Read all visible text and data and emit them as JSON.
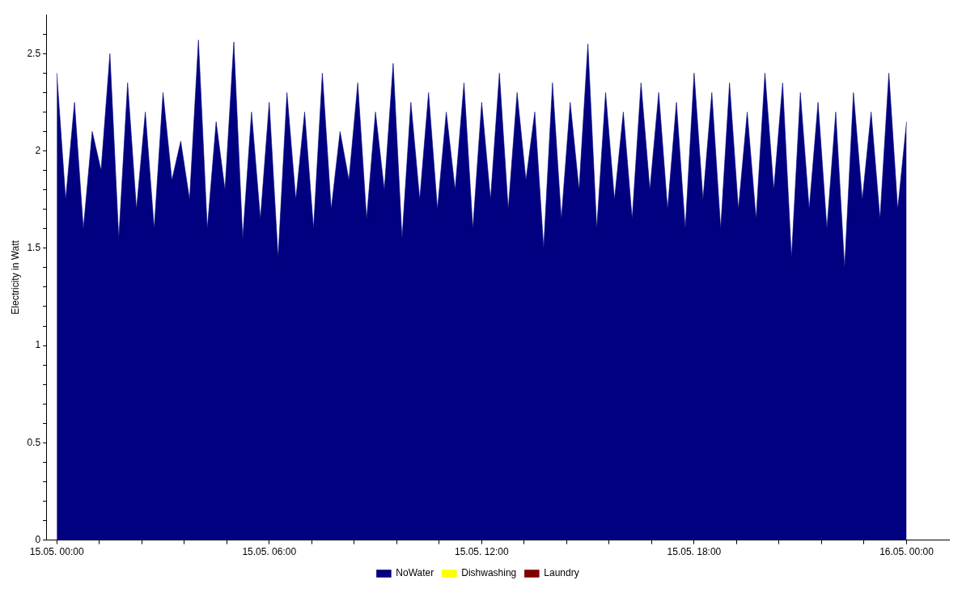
{
  "chart_data": {
    "type": "area",
    "ylabel": "Electricity in Watt",
    "legend": "bottom",
    "grid": false,
    "marker": "none",
    "xlim": [
      "--05-14T23:42",
      "--05-16T01:12"
    ],
    "ylim": [
      0,
      2.7
    ],
    "xticks": [
      {
        "value": "--05-15T00:00",
        "label": "15.05. 00:00"
      },
      {
        "value": "--05-15T01:12",
        "label": null
      },
      {
        "value": "--05-15T02:24",
        "label": null
      },
      {
        "value": "--05-15T03:36",
        "label": null
      },
      {
        "value": "--05-15T04:48",
        "label": null
      },
      {
        "value": "--05-15T06:00",
        "label": "15.05. 06:00"
      },
      {
        "value": "--05-15T07:12",
        "label": null
      },
      {
        "value": "--05-15T08:24",
        "label": null
      },
      {
        "value": "--05-15T09:36",
        "label": null
      },
      {
        "value": "--05-15T10:48",
        "label": null
      },
      {
        "value": "--05-15T12:00",
        "label": "15.05. 12:00"
      },
      {
        "value": "--05-15T13:12",
        "label": null
      },
      {
        "value": "--05-15T14:24",
        "label": null
      },
      {
        "value": "--05-15T15:36",
        "label": null
      },
      {
        "value": "--05-15T16:48",
        "label": null
      },
      {
        "value": "--05-15T18:00",
        "label": "15.05. 18:00"
      },
      {
        "value": "--05-15T19:12",
        "label": null
      },
      {
        "value": "--05-15T20:24",
        "label": null
      },
      {
        "value": "--05-15T21:36",
        "label": null
      },
      {
        "value": "--05-15T22:48",
        "label": null
      },
      {
        "value": "--05-16T00:00",
        "label": "16.05. 00:00"
      }
    ],
    "yticks": [
      0,
      {
        "value": 0.1,
        "label": null
      },
      {
        "value": 0.2,
        "label": null
      },
      {
        "value": 0.3,
        "label": null
      },
      {
        "value": 0.4,
        "label": null
      },
      0.5,
      {
        "value": 0.6,
        "label": null
      },
      {
        "value": 0.7,
        "label": null
      },
      {
        "value": 0.8,
        "label": null
      },
      {
        "value": 0.9,
        "label": null
      },
      1,
      {
        "value": 1.1,
        "label": null
      },
      {
        "value": 1.2,
        "label": null
      },
      {
        "value": 1.3,
        "label": null
      },
      {
        "value": 1.4,
        "label": null
      },
      1.5,
      {
        "value": 1.6,
        "label": null
      },
      {
        "value": 1.7,
        "label": null
      },
      {
        "value": 1.8,
        "label": null
      },
      {
        "value": 1.9,
        "label": null
      },
      2,
      {
        "value": 2.1,
        "label": null
      },
      {
        "value": 2.2,
        "label": null
      },
      {
        "value": 2.3,
        "label": null
      },
      {
        "value": 2.4,
        "label": null
      },
      2.5,
      {
        "value": 2.6,
        "label": null
      }
    ],
    "x": [
      "--05-15T00:00",
      "--05-15T00:15",
      "--05-15T00:30",
      "--05-15T00:45",
      "--05-15T01:00",
      "--05-15T01:15",
      "--05-15T01:30",
      "--05-15T01:45",
      "--05-15T02:00",
      "--05-15T02:15",
      "--05-15T02:30",
      "--05-15T02:45",
      "--05-15T03:00",
      "--05-15T03:15",
      "--05-15T03:30",
      "--05-15T03:45",
      "--05-15T04:00",
      "--05-15T04:15",
      "--05-15T04:30",
      "--05-15T04:45",
      "--05-15T05:00",
      "--05-15T05:15",
      "--05-15T05:30",
      "--05-15T05:45",
      "--05-15T06:00",
      "--05-15T06:15",
      "--05-15T06:30",
      "--05-15T06:45",
      "--05-15T07:00",
      "--05-15T07:15",
      "--05-15T07:30",
      "--05-15T07:45",
      "--05-15T08:00",
      "--05-15T08:15",
      "--05-15T08:30",
      "--05-15T08:45",
      "--05-15T09:00",
      "--05-15T09:15",
      "--05-15T09:30",
      "--05-15T09:45",
      "--05-15T10:00",
      "--05-15T10:15",
      "--05-15T10:30",
      "--05-15T10:45",
      "--05-15T11:00",
      "--05-15T11:15",
      "--05-15T11:30",
      "--05-15T11:45",
      "--05-15T12:00",
      "--05-15T12:15",
      "--05-15T12:30",
      "--05-15T12:45",
      "--05-15T13:00",
      "--05-15T13:15",
      "--05-15T13:30",
      "--05-15T13:45",
      "--05-15T14:00",
      "--05-15T14:15",
      "--05-15T14:30",
      "--05-15T14:45",
      "--05-15T15:00",
      "--05-15T15:15",
      "--05-15T15:30",
      "--05-15T15:45",
      "--05-15T16:00",
      "--05-15T16:15",
      "--05-15T16:30",
      "--05-15T16:45",
      "--05-15T17:00",
      "--05-15T17:15",
      "--05-15T17:30",
      "--05-15T17:45",
      "--05-15T18:00",
      "--05-15T18:15",
      "--05-15T18:30",
      "--05-15T18:45",
      "--05-15T19:00",
      "--05-15T19:15",
      "--05-15T19:30",
      "--05-15T19:45",
      "--05-15T20:00",
      "--05-15T20:15",
      "--05-15T20:30",
      "--05-15T20:45",
      "--05-15T21:00",
      "--05-15T21:15",
      "--05-15T21:30",
      "--05-15T21:45",
      "--05-15T22:00",
      "--05-15T22:15",
      "--05-15T22:30",
      "--05-15T22:45",
      "--05-15T23:00",
      "--05-15T23:15",
      "--05-15T23:30",
      "--05-15T23:45",
      "--05-16T00:00"
    ],
    "series": [
      {
        "name": "NoWater",
        "color": "#000080",
        "values": [
          2.4,
          1.75,
          2.25,
          1.6,
          2.1,
          1.9,
          2.5,
          1.55,
          2.35,
          1.7,
          2.2,
          1.6,
          2.3,
          1.85,
          2.05,
          1.75,
          2.57,
          1.6,
          2.15,
          1.8,
          2.56,
          1.55,
          2.2,
          1.65,
          2.25,
          1.45,
          2.3,
          1.75,
          2.2,
          1.6,
          2.4,
          1.7,
          2.1,
          1.85,
          2.35,
          1.65,
          2.2,
          1.8,
          2.45,
          1.55,
          2.25,
          1.75,
          2.3,
          1.7,
          2.2,
          1.8,
          2.35,
          1.6,
          2.25,
          1.75,
          2.4,
          1.7,
          2.3,
          1.85,
          2.2,
          1.5,
          2.35,
          1.65,
          2.25,
          1.8,
          2.55,
          1.6,
          2.3,
          1.75,
          2.2,
          1.65,
          2.35,
          1.8,
          2.3,
          1.7,
          2.25,
          1.6,
          2.4,
          1.75,
          2.3,
          1.6,
          2.35,
          1.7,
          2.2,
          1.65,
          2.4,
          1.8,
          2.35,
          1.45,
          2.3,
          1.7,
          2.25,
          1.6,
          2.2,
          1.4,
          2.3,
          1.75,
          2.2,
          1.65,
          2.4,
          1.7,
          2.15
        ]
      },
      {
        "name": "Dishwashing",
        "color": "#ffff00",
        "values": [
          null,
          null,
          null,
          null,
          null,
          null,
          null,
          null,
          null,
          null,
          null,
          null,
          null,
          null,
          null,
          null,
          null,
          null,
          null,
          null,
          null,
          null,
          null,
          null,
          null,
          null,
          null,
          null,
          null,
          null,
          null,
          null,
          null,
          null,
          null,
          null,
          null,
          null,
          null,
          null,
          null,
          null,
          null,
          null,
          null,
          null,
          null,
          null,
          null,
          null,
          null,
          null,
          null,
          null,
          null,
          null,
          null,
          null,
          null,
          null,
          null,
          null,
          null,
          null,
          null,
          null,
          null,
          null,
          null,
          null,
          null,
          null,
          null,
          null,
          null,
          null,
          null,
          null,
          null,
          null,
          null,
          null,
          null,
          null,
          null,
          null,
          null,
          null,
          null,
          null,
          null,
          null,
          null,
          null,
          null,
          null,
          null
        ]
      },
      {
        "name": "Laundry",
        "color": "#800000",
        "values": [
          null,
          null,
          null,
          null,
          null,
          null,
          null,
          null,
          null,
          null,
          null,
          null,
          null,
          null,
          null,
          null,
          null,
          null,
          null,
          null,
          null,
          null,
          null,
          null,
          null,
          null,
          null,
          null,
          null,
          null,
          null,
          null,
          null,
          null,
          null,
          null,
          null,
          null,
          null,
          null,
          null,
          null,
          null,
          null,
          null,
          null,
          null,
          null,
          null,
          null,
          null,
          null,
          null,
          null,
          null,
          null,
          null,
          null,
          null,
          null,
          null,
          null,
          null,
          null,
          null,
          null,
          null,
          null,
          null,
          null,
          null,
          null,
          null,
          null,
          null,
          null,
          null,
          null,
          null,
          null,
          null,
          null,
          null,
          null,
          null,
          null,
          null,
          null,
          null,
          null,
          null,
          null,
          null,
          null,
          null,
          null,
          null
        ]
      }
    ]
  }
}
